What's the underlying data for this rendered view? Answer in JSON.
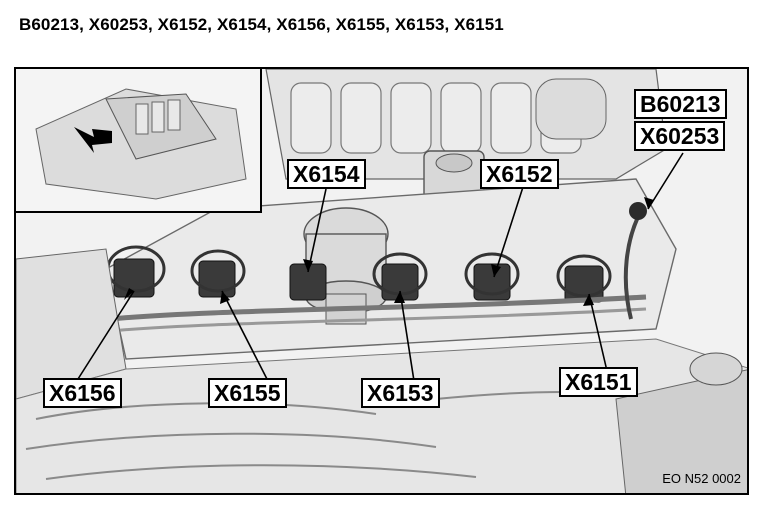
{
  "heading": "B60213, X60253, X6152, X6154, X6156, X6155, X6153, X6151",
  "callouts": {
    "b60213": "B60213",
    "x60253": "X60253",
    "x6154": "X6154",
    "x6152": "X6152",
    "x6156": "X6156",
    "x6155": "X6155",
    "x6153": "X6153",
    "x6151": "X6151"
  },
  "reference_code": "EO N52 0002"
}
